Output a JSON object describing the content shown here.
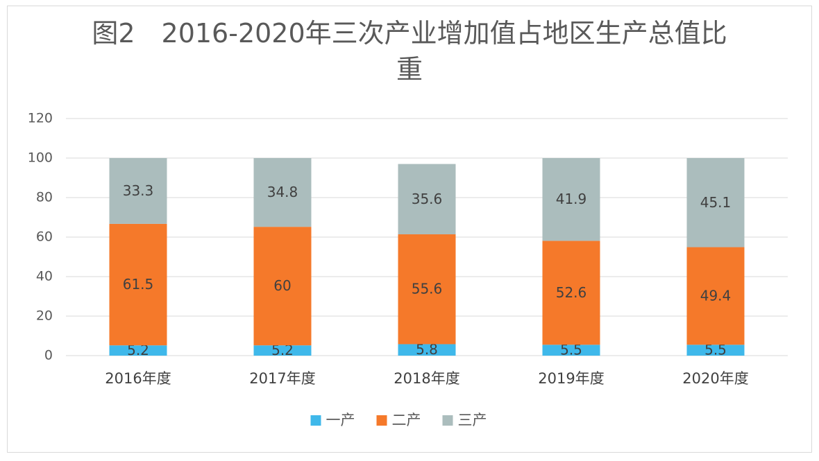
{
  "chart_data": {
    "type": "stacked_bar",
    "title": "图2　2016-2020年三次产业增加值占地区生产总值比重",
    "categories": [
      "2016年度",
      "2017年度",
      "2018年度",
      "2019年度",
      "2020年度"
    ],
    "series": [
      {
        "name": "一产",
        "color": "#3fb8ea",
        "values": [
          5.2,
          5.2,
          5.8,
          5.5,
          5.5
        ]
      },
      {
        "name": "二产",
        "color": "#f5792a",
        "values": [
          61.5,
          60,
          55.6,
          52.6,
          49.4
        ]
      },
      {
        "name": "三产",
        "color": "#abbdbd",
        "values": [
          33.3,
          34.8,
          35.6,
          41.9,
          45.1
        ]
      }
    ],
    "ylim": [
      0,
      120
    ],
    "yticks": [
      0,
      20,
      40,
      60,
      80,
      100,
      120
    ],
    "grid": true,
    "legend": "bottom"
  }
}
